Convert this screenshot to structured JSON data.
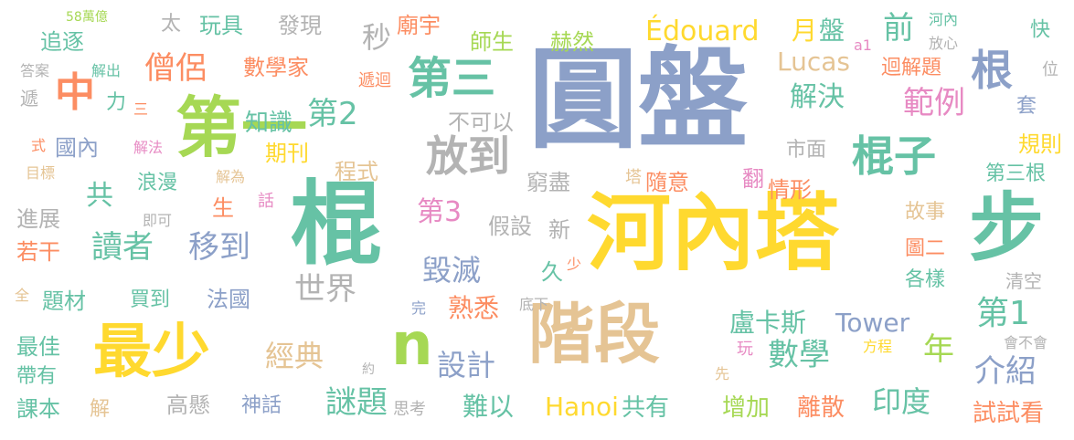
{
  "colors": {
    "blue": "#8ca0c8",
    "green": "#66c2a5",
    "orange": "#fc8d62",
    "pink": "#e78ac3",
    "lime": "#a6d854",
    "yellow": "#ffd92f",
    "tan": "#e5c494",
    "gray": "#b3b3b3"
  },
  "words": [
    {
      "text": "圓盤",
      "color": "blue",
      "size": 120
    },
    {
      "text": "河內塔",
      "color": "yellow",
      "size": 92
    },
    {
      "text": "棍",
      "color": "green",
      "size": 100
    },
    {
      "text": "步",
      "color": "green",
      "size": 82
    },
    {
      "text": "第一",
      "color": "lime",
      "size": 72
    },
    {
      "text": "階段",
      "color": "tan",
      "size": 72
    },
    {
      "text": "最少",
      "color": "yellow",
      "size": 64
    },
    {
      "text": "n",
      "color": "lime",
      "size": 64
    },
    {
      "text": "第三",
      "color": "green",
      "size": 48
    },
    {
      "text": "放到",
      "color": "gray",
      "size": 46
    },
    {
      "text": "棍子",
      "color": "green",
      "size": 46
    },
    {
      "text": "根",
      "color": "blue",
      "size": 46
    },
    {
      "text": "中",
      "color": "orange",
      "size": 44
    },
    {
      "text": "前",
      "color": "green",
      "size": 34
    },
    {
      "text": "第2",
      "color": "green",
      "size": 34
    },
    {
      "text": "僧侶",
      "color": "orange",
      "size": 34
    },
    {
      "text": "讀者",
      "color": "green",
      "size": 34
    },
    {
      "text": "移到",
      "color": "blue",
      "size": 34
    },
    {
      "text": "世界",
      "color": "gray",
      "size": 34
    },
    {
      "text": "毀滅",
      "color": "blue",
      "size": 32
    },
    {
      "text": "謎題",
      "color": "green",
      "size": 34
    },
    {
      "text": "範例",
      "color": "pink",
      "size": 34
    },
    {
      "text": "解決",
      "color": "green",
      "size": 30
    },
    {
      "text": "數學",
      "color": "green",
      "size": 34
    },
    {
      "text": "第1",
      "color": "green",
      "size": 36
    },
    {
      "text": "年",
      "color": "lime",
      "size": 34
    },
    {
      "text": "介紹",
      "color": "blue",
      "size": 34
    },
    {
      "text": "印度",
      "color": "green",
      "size": 32
    },
    {
      "text": "經典",
      "color": "tan",
      "size": 32
    },
    {
      "text": "設計",
      "color": "blue",
      "size": 32
    },
    {
      "text": "第3",
      "color": "pink",
      "size": 30
    },
    {
      "text": "熟悉",
      "color": "orange",
      "size": 28
    },
    {
      "text": "難以",
      "color": "green",
      "size": 28
    },
    {
      "text": "Hanoi",
      "color": "yellow",
      "size": 28
    },
    {
      "text": "共有",
      "color": "green",
      "size": 26
    },
    {
      "text": "增加",
      "color": "lime",
      "size": 26
    },
    {
      "text": "離散",
      "color": "orange",
      "size": 26
    },
    {
      "text": "試試看",
      "color": "orange",
      "size": 26
    },
    {
      "text": "盧卡斯",
      "color": "green",
      "size": 28
    },
    {
      "text": "Tower",
      "color": "blue",
      "size": 28
    },
    {
      "text": "Édouard",
      "color": "yellow",
      "size": 30
    },
    {
      "text": "Lucas",
      "color": "tan",
      "size": 28
    },
    {
      "text": "月",
      "color": "yellow",
      "size": 28
    },
    {
      "text": "盤",
      "color": "green",
      "size": 28
    },
    {
      "text": "a1",
      "color": "pink",
      "size": 16
    },
    {
      "text": "快",
      "color": "green",
      "size": 22
    },
    {
      "text": "河內",
      "color": "green",
      "size": 16
    },
    {
      "text": "放心",
      "color": "gray",
      "size": 16
    },
    {
      "text": "迴解題",
      "color": "orange",
      "size": 22
    },
    {
      "text": "位",
      "color": "gray",
      "size": 18
    },
    {
      "text": "套",
      "color": "blue",
      "size": 22
    },
    {
      "text": "規則",
      "color": "yellow",
      "size": 24
    },
    {
      "text": "第三根",
      "color": "green",
      "size": 22
    },
    {
      "text": "市面",
      "color": "gray",
      "size": 22
    },
    {
      "text": "翻",
      "color": "pink",
      "size": 24
    },
    {
      "text": "情形",
      "color": "orange",
      "size": 24
    },
    {
      "text": "故事",
      "color": "tan",
      "size": 22
    },
    {
      "text": "圖二",
      "color": "orange",
      "size": 22
    },
    {
      "text": "各樣",
      "color": "green",
      "size": 22
    },
    {
      "text": "清空",
      "color": "gray",
      "size": 20
    },
    {
      "text": "會不會",
      "color": "gray",
      "size": 16
    },
    {
      "text": "方程",
      "color": "yellow",
      "size": 16
    },
    {
      "text": "先",
      "color": "tan",
      "size": 16
    },
    {
      "text": "玩",
      "color": "pink",
      "size": 18
    },
    {
      "text": "隨意",
      "color": "orange",
      "size": 24
    },
    {
      "text": "塔",
      "color": "tan",
      "size": 18
    },
    {
      "text": "窮盡",
      "color": "gray",
      "size": 24
    },
    {
      "text": "假設",
      "color": "gray",
      "size": 24
    },
    {
      "text": "新",
      "color": "gray",
      "size": 24
    },
    {
      "text": "久",
      "color": "green",
      "size": 24
    },
    {
      "text": "少",
      "color": "orange",
      "size": 16
    },
    {
      "text": "完",
      "color": "blue",
      "size": 16
    },
    {
      "text": "底下",
      "color": "gray",
      "size": 16
    },
    {
      "text": "思考",
      "color": "gray",
      "size": 18
    },
    {
      "text": "約",
      "color": "gray",
      "size": 14
    },
    {
      "text": "不可以",
      "color": "gray",
      "size": 24
    },
    {
      "text": "秒",
      "color": "gray",
      "size": 32
    },
    {
      "text": "發現",
      "color": "gray",
      "size": 24
    },
    {
      "text": "數學家",
      "color": "orange",
      "size": 24
    },
    {
      "text": "廟宇",
      "color": "orange",
      "size": 24
    },
    {
      "text": "師生",
      "color": "lime",
      "size": 24
    },
    {
      "text": "赫然",
      "color": "lime",
      "size": 24
    },
    {
      "text": "遞迴",
      "color": "orange",
      "size": 18
    },
    {
      "text": "知識",
      "color": "green",
      "size": 26
    },
    {
      "text": "期刊",
      "color": "yellow",
      "size": 24
    },
    {
      "text": "程式",
      "color": "tan",
      "size": 24
    },
    {
      "text": "太",
      "color": "gray",
      "size": 22
    },
    {
      "text": "玩具",
      "color": "green",
      "size": 24
    },
    {
      "text": "58萬億",
      "color": "lime",
      "size": 14
    },
    {
      "text": "追逐",
      "color": "green",
      "size": 24
    },
    {
      "text": "答案",
      "color": "gray",
      "size": 16
    },
    {
      "text": "解出",
      "color": "green",
      "size": 16
    },
    {
      "text": "遞",
      "color": "gray",
      "size": 20
    },
    {
      "text": "力",
      "color": "green",
      "size": 22
    },
    {
      "text": "三",
      "color": "orange",
      "size": 16
    },
    {
      "text": "式",
      "color": "orange",
      "size": 16
    },
    {
      "text": "國內",
      "color": "blue",
      "size": 24
    },
    {
      "text": "解法",
      "color": "pink",
      "size": 16
    },
    {
      "text": "目標",
      "color": "tan",
      "size": 16
    },
    {
      "text": "浪漫",
      "color": "green",
      "size": 22
    },
    {
      "text": "解為",
      "color": "tan",
      "size": 16
    },
    {
      "text": "共",
      "color": "green",
      "size": 30
    },
    {
      "text": "生",
      "color": "orange",
      "size": 24
    },
    {
      "text": "話",
      "color": "pink",
      "size": 18
    },
    {
      "text": "進展",
      "color": "gray",
      "size": 24
    },
    {
      "text": "即可",
      "color": "gray",
      "size": 16
    },
    {
      "text": "若干",
      "color": "orange",
      "size": 24
    },
    {
      "text": "全",
      "color": "tan",
      "size": 16
    },
    {
      "text": "題材",
      "color": "green",
      "size": 24
    },
    {
      "text": "買到",
      "color": "green",
      "size": 22
    },
    {
      "text": "法國",
      "color": "blue",
      "size": 24
    },
    {
      "text": "最佳",
      "color": "green",
      "size": 24
    },
    {
      "text": "帶有",
      "color": "green",
      "size": 22
    },
    {
      "text": "課本",
      "color": "green",
      "size": 24
    },
    {
      "text": "解",
      "color": "tan",
      "size": 22
    },
    {
      "text": "高懸",
      "color": "gray",
      "size": 24
    },
    {
      "text": "神話",
      "color": "blue",
      "size": 22
    }
  ]
}
